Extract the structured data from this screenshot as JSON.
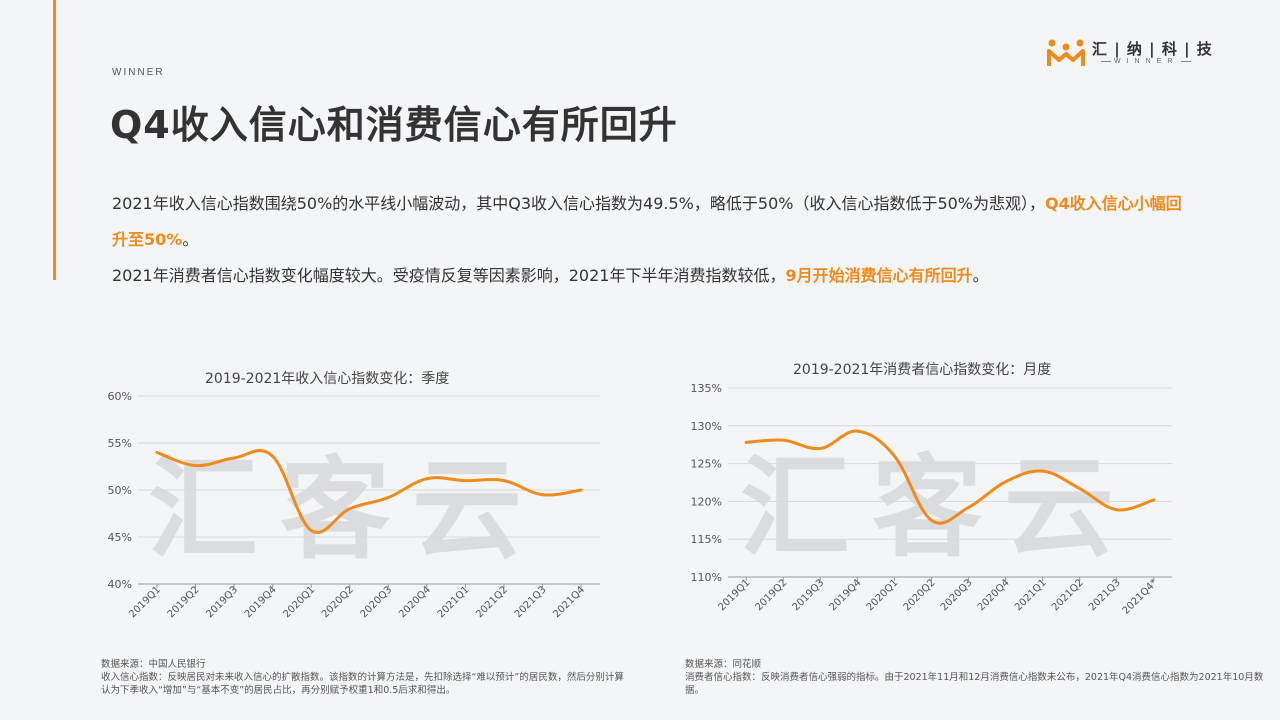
{
  "header": {
    "kicker": "WINNER",
    "title": "Q4收入信心和消费信心有所回升",
    "logo_cn": "汇 | 纳 | 科 | 技",
    "logo_en": "WINNER"
  },
  "body": {
    "p1_a": "2021年收入信心指数围绕50%的水平线小幅波动，其中Q3收入信心指数为49.5%，略低于50%（收入信心指数低于50%为悲观），",
    "p1_hl": "Q4收入信心小幅回升至50%",
    "p1_end": "。",
    "p2_a": "2021年消费者信心指数变化幅度较大。受疫情反复等因素影响，2021年下半年消费指数较低，",
    "p2_hl": "9月开始消费信心有所回升",
    "p2_end": "。"
  },
  "watermark": "汇客云",
  "colors": {
    "accent": "#f08a1c",
    "text": "#333333",
    "axis": "#999999",
    "grid": "#d9d9d9"
  },
  "chart_data": [
    {
      "type": "line",
      "title": "2019-2021年收入信心指数变化：季度",
      "categories": [
        "2019Q1",
        "2019Q2",
        "2019Q3",
        "2019Q4",
        "2020Q1",
        "2020Q2",
        "2020Q3",
        "2020Q4",
        "2021Q1",
        "2021Q2",
        "2021Q3",
        "2021Q4"
      ],
      "values": [
        54.0,
        52.6,
        53.4,
        53.6,
        45.7,
        48.0,
        49.2,
        51.2,
        51.0,
        51.0,
        49.5,
        50.0
      ],
      "yticks": [
        "40%",
        "45%",
        "50%",
        "55%",
        "60%"
      ],
      "ylim": [
        40,
        60
      ],
      "grid": true
    },
    {
      "type": "line",
      "title": "2019-2021年消费者信心指数变化：月度",
      "categories": [
        "2019Q1",
        "2019Q2",
        "2019Q3",
        "2019Q4",
        "2020Q1",
        "2020Q2",
        "2020Q3",
        "2020Q4",
        "2021Q1",
        "2021Q2",
        "2021Q3",
        "2021Q4*"
      ],
      "values": [
        127.8,
        128.1,
        127.0,
        129.3,
        126.0,
        117.5,
        119.2,
        122.6,
        124.0,
        121.7,
        118.9,
        120.2
      ],
      "yticks": [
        "110%",
        "115%",
        "120%",
        "125%",
        "130%",
        "135%"
      ],
      "ylim": [
        110,
        135
      ],
      "grid": true
    }
  ],
  "footnotes": {
    "left_1": "数据来源：中国人民银行",
    "left_2": "收入信心指数：反映居民对未来收入信心的扩散指数。该指数的计算方法是，先扣除选择“难以预计”的居民数，然后分别计算认为下季收入“增加”与“基本不变”的居民占比，再分别赋予权重1和0.5后求和得出。",
    "right_1": "数据来源：同花顺",
    "right_2": "消费者信心指数：反映消费者信心强弱的指标。由于2021年11月和12月消费信心指数未公布，2021年Q4消费信心指数为2021年10月数据。"
  }
}
